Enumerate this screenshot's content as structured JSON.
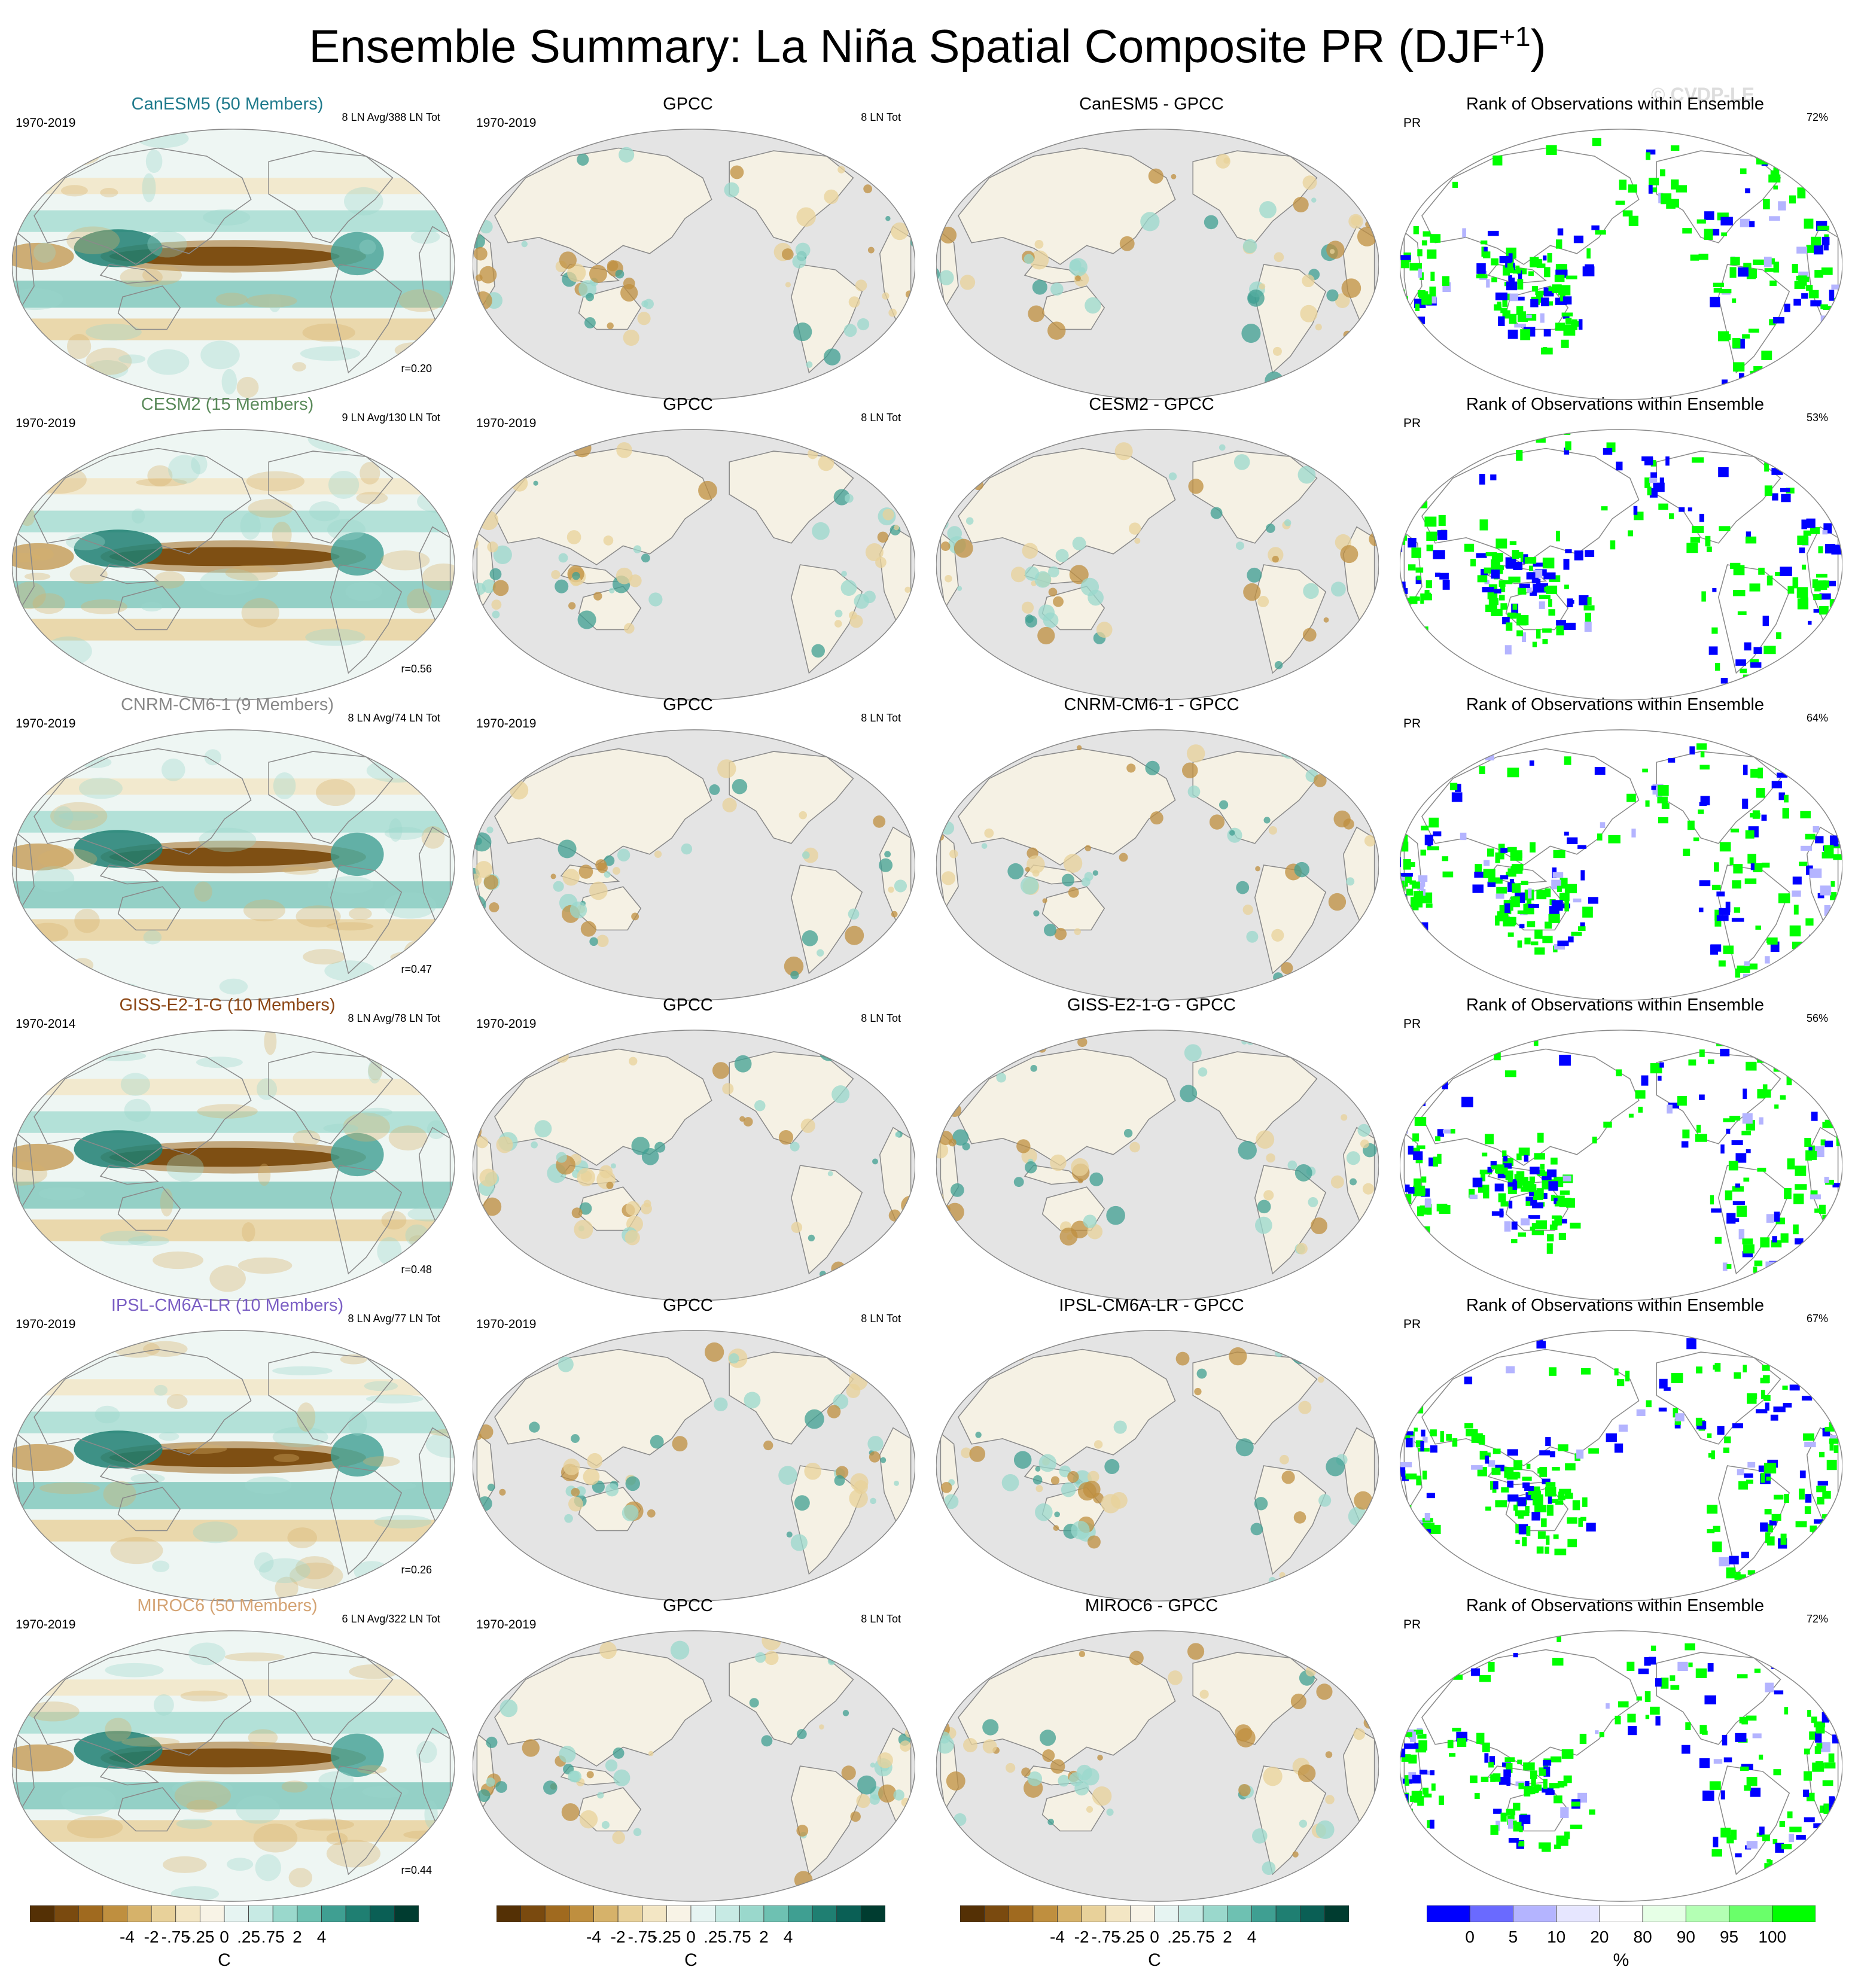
{
  "figure": {
    "title": "Ensemble Summary: La Niña Spatial Composite PR (DJF",
    "title_sup": "+1",
    "title_suffix": ")",
    "watermark": "© CVDP-LE"
  },
  "colors": {
    "brown_dark": "#543005",
    "teal_dark": "#003c30",
    "ocean_gray": "#e4e4e4",
    "rank_low": "#0000ff",
    "rank_high": "#00ff00"
  },
  "rows": [
    {
      "model": "CanESM5",
      "model_title": "CanESM5 (50 Members)",
      "model_color": "#1f7a8c",
      "period": "1970-2019",
      "ln_info": "8 LN Avg/388 LN Tot",
      "r": "r=0.20",
      "obs_title": "GPCC",
      "obs_period": "1970-2019",
      "obs_info": "8 LN Tot",
      "diff_title": "CanESM5 - GPCC",
      "rank_title": "Rank of Observations within Ensemble",
      "rank_var": "PR",
      "rank_pct": "72%"
    },
    {
      "model": "CESM2",
      "model_title": "CESM2 (15 Members)",
      "model_color": "#5a8a5a",
      "period": "1970-2019",
      "ln_info": "9 LN Avg/130 LN Tot",
      "r": "r=0.56",
      "obs_title": "GPCC",
      "obs_period": "1970-2019",
      "obs_info": "8 LN Tot",
      "diff_title": "CESM2 - GPCC",
      "rank_title": "Rank of Observations within Ensemble",
      "rank_var": "PR",
      "rank_pct": "53%"
    },
    {
      "model": "CNRM-CM6-1",
      "model_title": "CNRM-CM6-1 (9 Members)",
      "model_color": "#888888",
      "period": "1970-2019",
      "ln_info": "8 LN Avg/74 LN Tot",
      "r": "r=0.47",
      "obs_title": "GPCC",
      "obs_period": "1970-2019",
      "obs_info": "8 LN Tot",
      "diff_title": "CNRM-CM6-1 - GPCC",
      "rank_title": "Rank of Observations within Ensemble",
      "rank_var": "PR",
      "rank_pct": "64%"
    },
    {
      "model": "GISS-E2-1-G",
      "model_title": "GISS-E2-1-G (10 Members)",
      "model_color": "#8b4513",
      "period": "1970-2014",
      "ln_info": "8 LN Avg/78 LN Tot",
      "r": "r=0.48",
      "obs_title": "GPCC",
      "obs_period": "1970-2019",
      "obs_info": "8 LN Tot",
      "diff_title": "GISS-E2-1-G - GPCC",
      "rank_title": "Rank of Observations within Ensemble",
      "rank_var": "PR",
      "rank_pct": "56%"
    },
    {
      "model": "IPSL-CM6A-LR",
      "model_title": "IPSL-CM6A-LR (10 Members)",
      "model_color": "#7b5fc4",
      "period": "1970-2019",
      "ln_info": "8 LN Avg/77 LN Tot",
      "r": "r=0.26",
      "obs_title": "GPCC",
      "obs_period": "1970-2019",
      "obs_info": "8 LN Tot",
      "diff_title": "IPSL-CM6A-LR - GPCC",
      "rank_title": "Rank of Observations within Ensemble",
      "rank_var": "PR",
      "rank_pct": "67%"
    },
    {
      "model": "MIROC6",
      "model_title": "MIROC6 (50 Members)",
      "model_color": "#d4a373",
      "period": "1970-2019",
      "ln_info": "6 LN Avg/322 LN Tot",
      "r": "r=0.44",
      "obs_title": "GPCC",
      "obs_period": "1970-2019",
      "obs_info": "8 LN Tot",
      "diff_title": "MIROC6 - GPCC",
      "rank_title": "Rank of Observations within Ensemble",
      "rank_var": "PR",
      "rank_pct": "72%"
    }
  ],
  "colorbars": {
    "anomaly": {
      "colors": [
        "#543005",
        "#7a4a0f",
        "#a06a1f",
        "#bf8f3f",
        "#d6b26a",
        "#e8d19a",
        "#f3e6c4",
        "#f8f3e6",
        "#e6f4f2",
        "#c7eae4",
        "#9ad8cc",
        "#6ec1b2",
        "#3f9f92",
        "#1f7f72",
        "#0a5f55",
        "#003c30"
      ],
      "ticks": [
        "-4",
        "-2",
        "-.75",
        "-.25",
        "0",
        ".25",
        ".75",
        "2",
        "4"
      ],
      "unit": "C"
    },
    "rank": {
      "colors": [
        "#0000ff",
        "#6a6aff",
        "#b4b4ff",
        "#e6e6ff",
        "#ffffff",
        "#e6ffe6",
        "#b4ffb4",
        "#6aff6a",
        "#00ff00"
      ],
      "ticks": [
        "0",
        "5",
        "10",
        "20",
        "80",
        "90",
        "95",
        "100"
      ],
      "unit": "%"
    }
  }
}
